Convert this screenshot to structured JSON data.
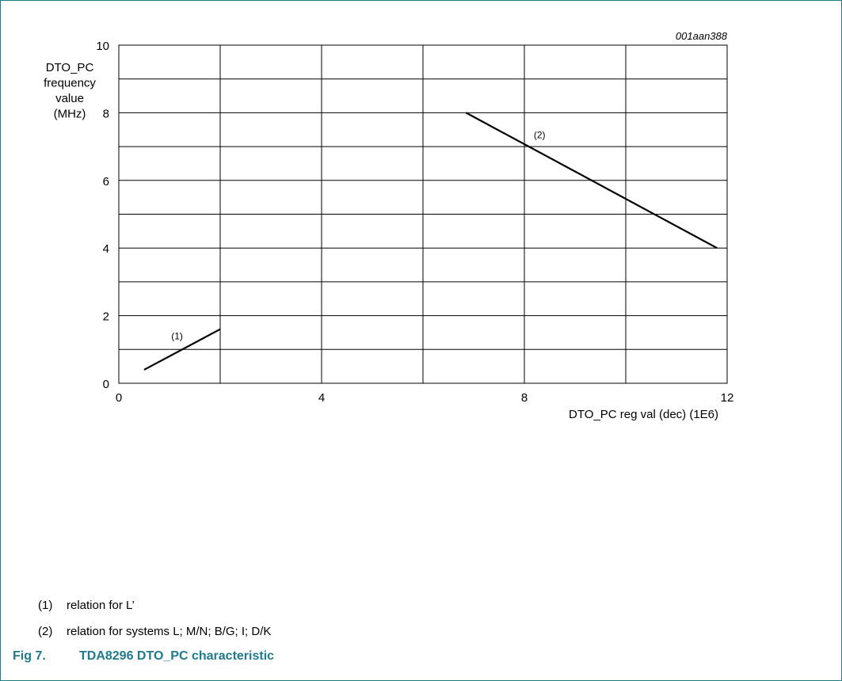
{
  "chart_data": {
    "type": "line",
    "code": "001aan388",
    "ylabel": [
      "DTO_PC",
      "frequency",
      "value",
      "(MHz)"
    ],
    "xlabel": "DTO_PC reg val (dec) (1E6)",
    "xlim": [
      0,
      12
    ],
    "ylim": [
      0,
      10
    ],
    "x_ticks": [
      0,
      4,
      8,
      12
    ],
    "y_ticks": [
      0,
      2,
      4,
      6,
      8,
      10
    ],
    "grid": true,
    "series": [
      {
        "name": "(1)",
        "x": [
          0.5,
          2.0
        ],
        "y": [
          0.4,
          1.6
        ],
        "label_at": [
          1.15,
          1.3
        ]
      },
      {
        "name": "(2)",
        "x": [
          6.85,
          11.8
        ],
        "y": [
          8.0,
          4.0
        ],
        "label_at": [
          8.3,
          7.25
        ]
      }
    ]
  },
  "legend": [
    {
      "num": "(1)",
      "text": "relation for L’"
    },
    {
      "num": "(2)",
      "text": "relation for systems L; M/N; B/G; I; D/K"
    }
  ],
  "caption": {
    "fig": "Fig 7.",
    "title": "TDA8296 DTO_PC characteristic"
  }
}
